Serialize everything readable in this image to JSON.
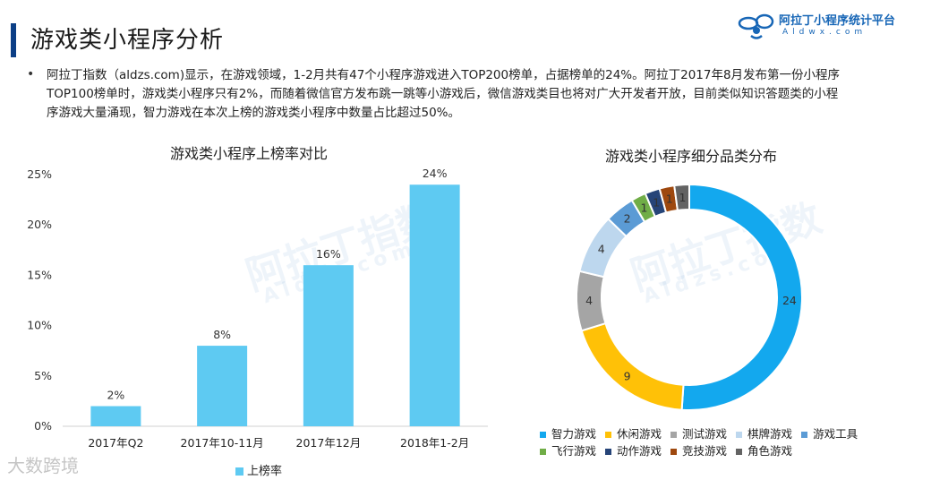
{
  "page": {
    "title": "游戏类小程序分析",
    "paragraph": "阿拉丁指数（aldzs.com)显示，在游戏领域，1-2月共有47个小程序游戏进入TOP200榜单，占据榜单的24%。阿拉丁2017年8月发布第一份小程序TOP100榜单时，游戏类小程序只有2%，而随着微信官方发布跳一跳等小游戏后，微信游戏类目也将对广大开发者开放，目前类似知识答题类的小程序游戏大量涌现，智力游戏在本次上榜的游戏类小程序中数量占比超过50%。"
  },
  "brand": {
    "name": "阿拉丁小程序统计平台",
    "url": "Aldwx.com",
    "icon": "aladdin-logo-icon"
  },
  "watermark": {
    "text": "阿拉丁指数",
    "url": "Aldzs.com"
  },
  "footer_mark": "大数跨境",
  "colors": {
    "accent": "#0c3f86",
    "bar": "#5ecaf2"
  },
  "chart_data": [
    {
      "type": "bar",
      "title": "游戏类小程序上榜率对比",
      "categories": [
        "2017年Q2",
        "2017年10-11月",
        "2017年12月",
        "2018年1-2月"
      ],
      "series": [
        {
          "name": "上榜率",
          "values": [
            2,
            8,
            16,
            24
          ],
          "color": "#5ecaf2"
        }
      ],
      "data_labels": [
        "2%",
        "8%",
        "16%",
        "24%"
      ],
      "yticks": [
        "0%",
        "5%",
        "10%",
        "15%",
        "20%",
        "25%"
      ],
      "ylim": [
        0,
        25
      ],
      "legend": "bottom",
      "grid": false
    },
    {
      "type": "pie",
      "subtype": "donut",
      "title": "游戏类小程序细分品类分布",
      "labels": [
        "智力游戏",
        "休闲游戏",
        "测试游戏",
        "棋牌游戏",
        "游戏工具",
        "飞行游戏",
        "动作游戏",
        "竞技游戏",
        "角色游戏"
      ],
      "values": [
        24,
        9,
        4,
        4,
        2,
        1,
        1,
        1,
        1
      ],
      "colors": [
        "#13a8ee",
        "#ffc107",
        "#a5a5a5",
        "#bdd7ee",
        "#5b9bd5",
        "#70ad47",
        "#264478",
        "#9e480e",
        "#636363"
      ],
      "legend": "bottom"
    }
  ]
}
